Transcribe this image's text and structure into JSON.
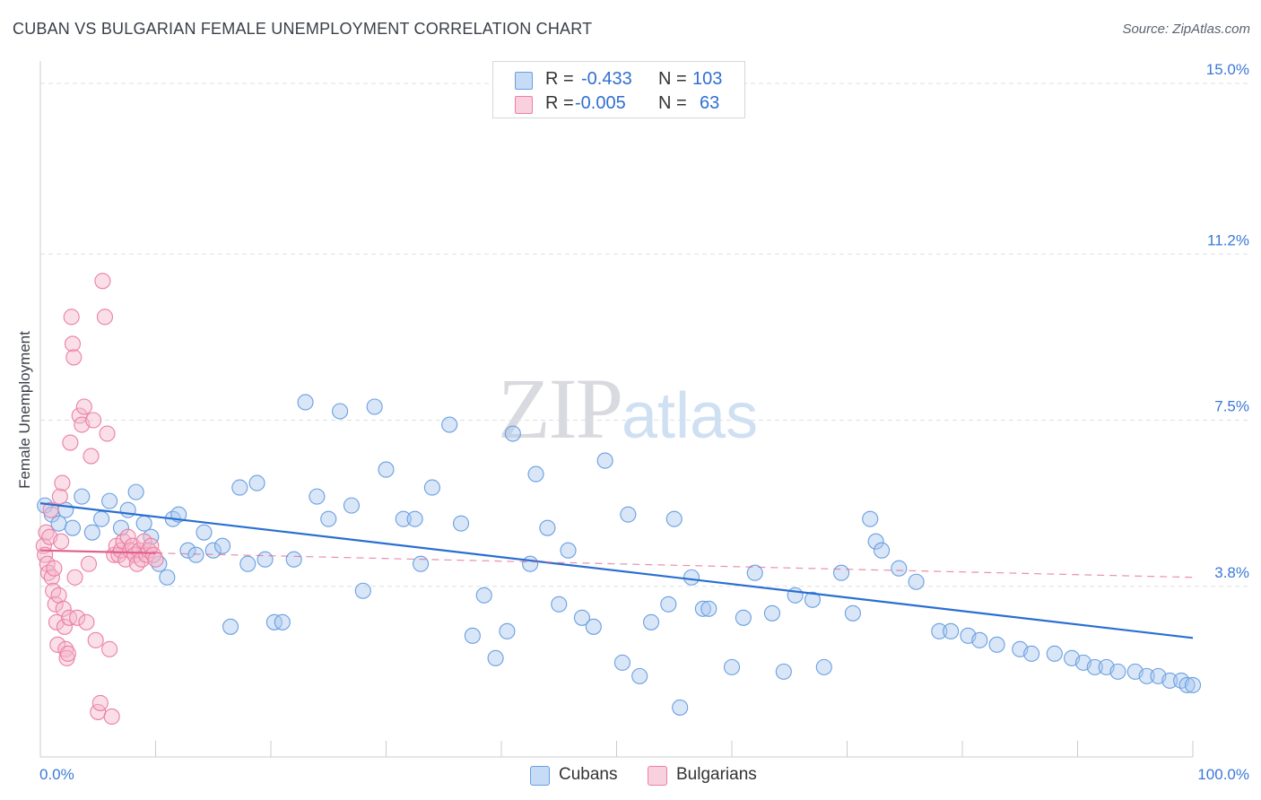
{
  "header": {
    "title": "CUBAN VS BULGARIAN FEMALE UNEMPLOYMENT CORRELATION CHART",
    "source": "Source: ZipAtlas.com"
  },
  "watermark": {
    "zip": "ZIP",
    "atlas": "atlas"
  },
  "legend": {
    "rows": [
      {
        "r_label": "R =",
        "r_value": "-0.433",
        "n_label": "N =",
        "n_value": "103",
        "color": "#a8c8f0"
      },
      {
        "r_label": "R =",
        "r_value": "-0.005",
        "n_label": "N =",
        "n_value": "63",
        "color": "#f5b8cc"
      }
    ]
  },
  "bottom_legend": {
    "cubans": "Cubans",
    "bulgarians": "Bulgarians"
  },
  "colors": {
    "cubans_fill": "#a8c8f0",
    "cubans_stroke": "#6a9fe0",
    "cubans_line": "#2a6fd0",
    "bulgarians_fill": "#f5b8cc",
    "bulgarians_stroke": "#ec7fa3",
    "bulgarians_line": "#e0608e",
    "tick_text": "#3b78d8",
    "grid": "#dcdfe4"
  },
  "chart_data": {
    "type": "scatter",
    "title": "CUBAN VS BULGARIAN FEMALE UNEMPLOYMENT CORRELATION CHART",
    "xlabel": "",
    "ylabel": "Female Unemployment",
    "xlim": [
      0,
      100
    ],
    "ylim": [
      0,
      15.3
    ],
    "x_tick_labels": [
      "0.0%",
      "100.0%"
    ],
    "y_ticks": [
      3.8,
      7.5,
      11.2,
      15.0
    ],
    "y_tick_labels": [
      "3.8%",
      "7.5%",
      "11.2%",
      "15.0%"
    ],
    "grid": true,
    "legend_position": "top-center",
    "series": [
      {
        "name": "Cubans",
        "x": [
          0.4,
          1.0,
          1.6,
          2.2,
          2.8,
          3.6,
          4.5,
          5.3,
          6.0,
          7.0,
          7.6,
          8.3,
          9.0,
          9.6,
          10.3,
          11.0,
          11.5,
          12.0,
          12.8,
          13.5,
          14.2,
          15.0,
          15.8,
          16.5,
          17.3,
          18.0,
          18.8,
          19.5,
          20.3,
          21.0,
          22.0,
          23.0,
          24.0,
          25.0,
          26.0,
          27.0,
          28.0,
          29.0,
          30.0,
          31.5,
          32.5,
          33.0,
          34.0,
          35.5,
          36.5,
          37.5,
          38.5,
          39.5,
          40.5,
          41.0,
          42.5,
          43.0,
          44.0,
          45.0,
          45.8,
          47.0,
          48.0,
          49.0,
          50.5,
          51.0,
          52.0,
          53.0,
          54.5,
          55.0,
          55.5,
          56.5,
          57.5,
          58.0,
          60.0,
          61.0,
          62.0,
          63.5,
          64.5,
          65.5,
          67.0,
          68.0,
          69.5,
          70.5,
          72.0,
          72.5,
          73.0,
          74.5,
          76.0,
          78.0,
          79.0,
          80.5,
          81.5,
          83.0,
          85.0,
          86.0,
          88.0,
          89.5,
          90.5,
          91.5,
          92.5,
          93.5,
          95.0,
          96.0,
          97.0,
          98.0,
          99.0,
          99.5,
          100.0
        ],
        "y": [
          5.6,
          5.4,
          5.2,
          5.5,
          5.1,
          5.8,
          5.0,
          5.3,
          5.7,
          5.1,
          5.5,
          5.9,
          5.2,
          4.9,
          4.3,
          4.0,
          5.3,
          5.4,
          4.6,
          4.5,
          5.0,
          4.6,
          4.7,
          2.9,
          6.0,
          4.3,
          6.1,
          4.4,
          3.0,
          3.0,
          4.4,
          7.9,
          5.8,
          5.3,
          7.7,
          5.6,
          3.7,
          7.8,
          6.4,
          5.3,
          5.3,
          4.3,
          6.0,
          7.4,
          5.2,
          2.7,
          3.6,
          2.2,
          2.8,
          7.2,
          4.3,
          6.3,
          5.1,
          3.4,
          4.6,
          3.1,
          2.9,
          6.6,
          2.1,
          5.4,
          1.8,
          3.0,
          3.4,
          5.3,
          1.1,
          4.0,
          3.3,
          3.3,
          2.0,
          3.1,
          4.1,
          3.2,
          1.9,
          3.6,
          3.5,
          2.0,
          4.1,
          3.2,
          5.3,
          4.8,
          4.6,
          4.2,
          3.9,
          2.8,
          2.8,
          2.7,
          2.6,
          2.5,
          2.4,
          2.3,
          2.3,
          2.2,
          2.1,
          2.0,
          2.0,
          1.9,
          1.9,
          1.8,
          1.8,
          1.7,
          1.7,
          1.6,
          1.6
        ],
        "values_note": ""
      },
      {
        "name": "Bulgarians",
        "x": [
          0.3,
          0.4,
          0.5,
          0.6,
          0.7,
          0.8,
          0.9,
          1.0,
          1.1,
          1.2,
          1.3,
          1.4,
          1.5,
          1.6,
          1.7,
          1.8,
          1.9,
          2.0,
          2.1,
          2.2,
          2.3,
          2.4,
          2.5,
          2.6,
          2.7,
          2.8,
          2.9,
          3.0,
          3.2,
          3.4,
          3.6,
          3.8,
          4.0,
          4.2,
          4.4,
          4.6,
          4.8,
          5.0,
          5.2,
          5.4,
          5.6,
          5.8,
          6.0,
          6.2,
          6.4,
          6.6,
          6.8,
          7.0,
          7.2,
          7.4,
          7.6,
          7.8,
          8.0,
          8.2,
          8.4,
          8.6,
          8.8,
          9.0,
          9.2,
          9.4,
          9.6,
          9.8,
          10.0
        ],
        "y": [
          4.7,
          4.5,
          5.0,
          4.3,
          4.1,
          4.9,
          5.5,
          4.0,
          3.7,
          4.2,
          3.4,
          3.0,
          2.5,
          3.6,
          5.8,
          4.8,
          6.1,
          3.3,
          2.9,
          2.4,
          2.2,
          2.3,
          3.1,
          7.0,
          9.8,
          9.2,
          8.9,
          4.0,
          3.1,
          7.6,
          7.4,
          7.8,
          3.0,
          4.3,
          6.7,
          7.5,
          2.6,
          1.0,
          1.2,
          10.6,
          9.8,
          7.2,
          2.4,
          0.9,
          4.5,
          4.7,
          4.5,
          4.6,
          4.8,
          4.4,
          4.9,
          4.6,
          4.7,
          4.5,
          4.3,
          4.6,
          4.4,
          4.8,
          4.5,
          4.6,
          4.7,
          4.5,
          4.4
        ]
      }
    ],
    "trend_lines": [
      {
        "name": "Cubans",
        "x": [
          0,
          100
        ],
        "y": [
          5.65,
          2.65
        ]
      },
      {
        "name": "Bulgarians",
        "x": [
          0,
          100
        ],
        "y": [
          4.6,
          4.0
        ]
      }
    ]
  }
}
